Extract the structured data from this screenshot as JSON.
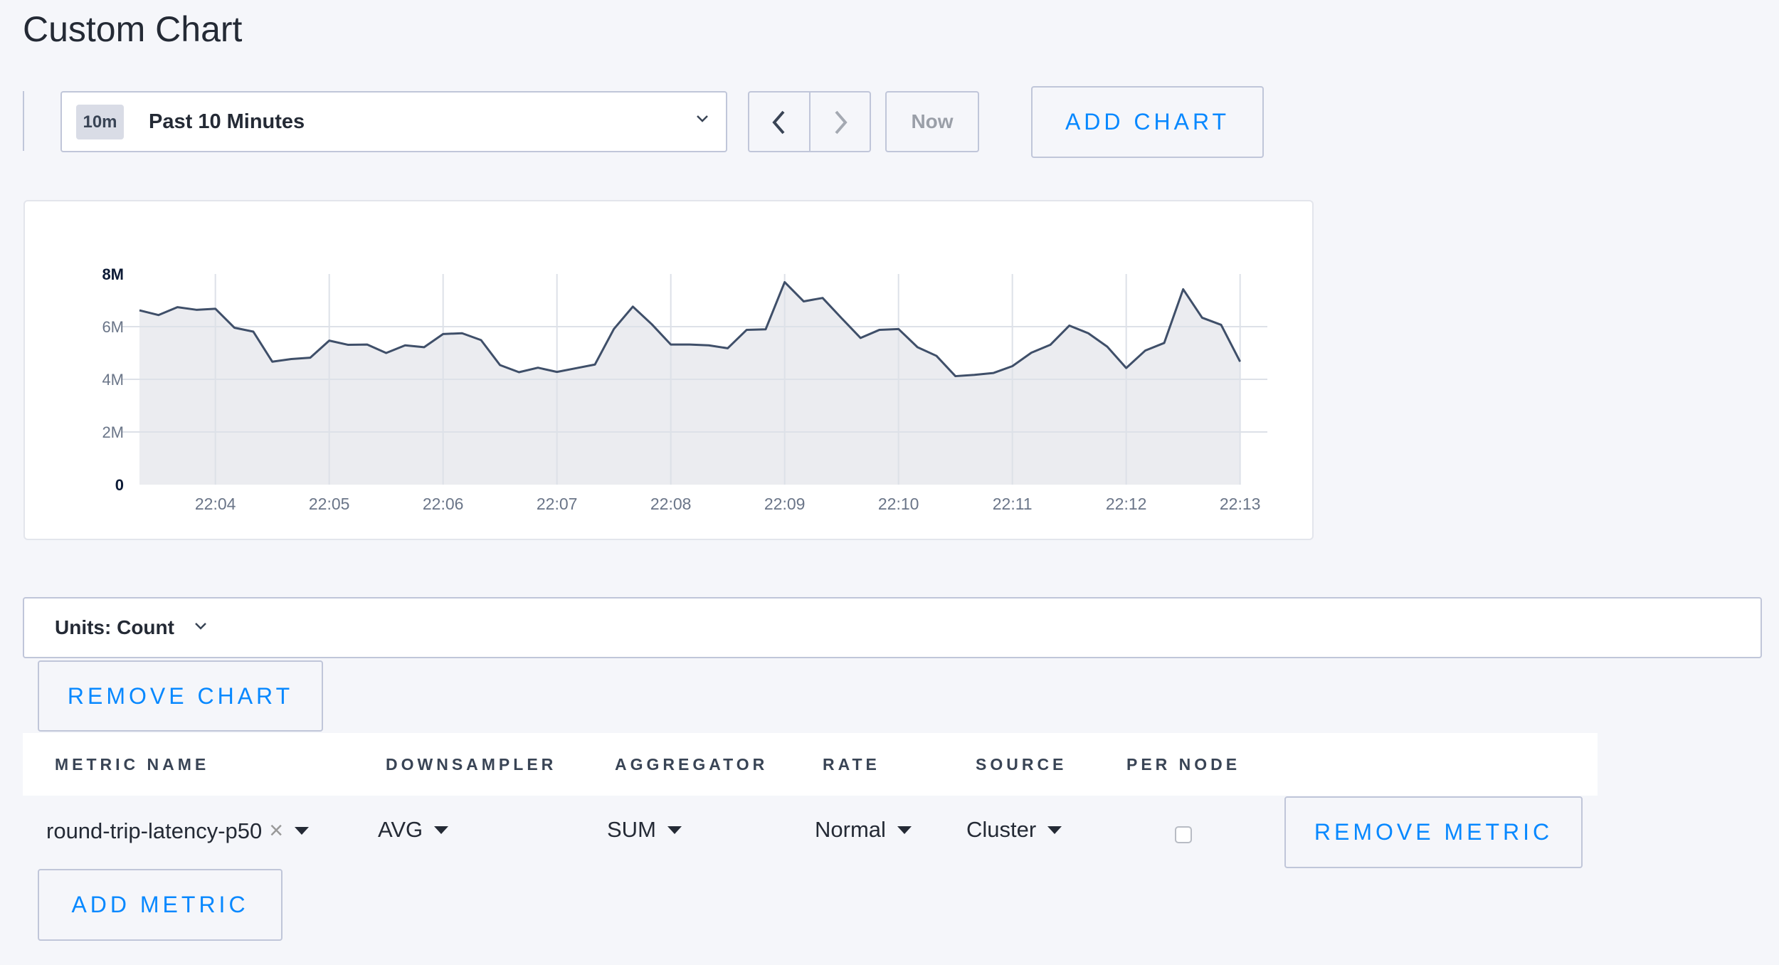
{
  "page": {
    "title": "Custom Chart"
  },
  "toolbar": {
    "range_badge": "10m",
    "range_label": "Past 10 Minutes",
    "prev_icon": "chevron-left-icon",
    "next_icon": "chevron-right-icon",
    "now_label": "Now",
    "add_chart_label": "ADD CHART"
  },
  "chart_data": {
    "type": "area",
    "x": [
      "22:03:20",
      "22:03:30",
      "22:03:40",
      "22:03:50",
      "22:04:00",
      "22:04:10",
      "22:04:20",
      "22:04:30",
      "22:04:40",
      "22:04:50",
      "22:05:00",
      "22:05:10",
      "22:05:20",
      "22:05:30",
      "22:05:40",
      "22:05:50",
      "22:06:00",
      "22:06:10",
      "22:06:20",
      "22:06:30",
      "22:06:40",
      "22:06:50",
      "22:07:00",
      "22:07:10",
      "22:07:20",
      "22:07:30",
      "22:07:40",
      "22:07:50",
      "22:08:00",
      "22:08:10",
      "22:08:20",
      "22:08:30",
      "22:08:40",
      "22:08:50",
      "22:09:00",
      "22:09:10",
      "22:09:20",
      "22:09:30",
      "22:09:40",
      "22:09:50",
      "22:10:00",
      "22:10:10",
      "22:10:20",
      "22:10:30",
      "22:10:40",
      "22:10:50",
      "22:11:00",
      "22:11:10",
      "22:11:20",
      "22:11:30",
      "22:11:40",
      "22:11:50",
      "22:12:00",
      "22:12:10",
      "22:12:20",
      "22:12:30",
      "22:12:40",
      "22:12:50",
      "22:13:00"
    ],
    "series": [
      {
        "values": [
          6620000,
          6440000,
          6740000,
          6640000,
          6680000,
          5960000,
          5810000,
          4670000,
          4770000,
          4820000,
          5470000,
          5310000,
          5320000,
          5000000,
          5290000,
          5220000,
          5720000,
          5750000,
          5490000,
          4540000,
          4270000,
          4440000,
          4280000,
          4420000,
          4560000,
          5910000,
          6760000,
          6090000,
          5320000,
          5320000,
          5290000,
          5180000,
          5880000,
          5900000,
          7690000,
          6960000,
          7090000,
          6320000,
          5570000,
          5880000,
          5910000,
          5220000,
          4890000,
          4120000,
          4170000,
          4240000,
          4500000,
          5010000,
          5310000,
          6040000,
          5750000,
          5240000,
          4430000,
          5090000,
          5380000,
          7420000,
          6340000,
          6070000,
          4670000
        ]
      }
    ],
    "x_ticks": [
      "22:04",
      "22:05",
      "22:06",
      "22:07",
      "22:08",
      "22:09",
      "22:10",
      "22:11",
      "22:12",
      "22:13"
    ],
    "y_ticks": [
      "0",
      "2M",
      "4M",
      "6M",
      "8M"
    ],
    "ylim": [
      0,
      8000000
    ],
    "grid": true,
    "line_color": "#3f4f69",
    "fill_color": "#ebecf0"
  },
  "units": {
    "label": "Units: Count"
  },
  "remove_chart_label": "REMOVE CHART",
  "table": {
    "headers": [
      "METRIC NAME",
      "DOWNSAMPLER",
      "AGGREGATOR",
      "RATE",
      "SOURCE",
      "PER NODE"
    ],
    "rows": [
      {
        "metric": "round-trip-latency-p50",
        "downsampler": "AVG",
        "aggregator": "SUM",
        "rate": "Normal",
        "source": "Cluster",
        "per_node": false
      }
    ],
    "remove_metric_label": "REMOVE METRIC",
    "clear_icon": "×"
  },
  "add_metric_label": "ADD METRIC",
  "colors": {
    "accent": "#0788ff",
    "border": "#c0c6d9",
    "background": "#f5f6fa"
  }
}
